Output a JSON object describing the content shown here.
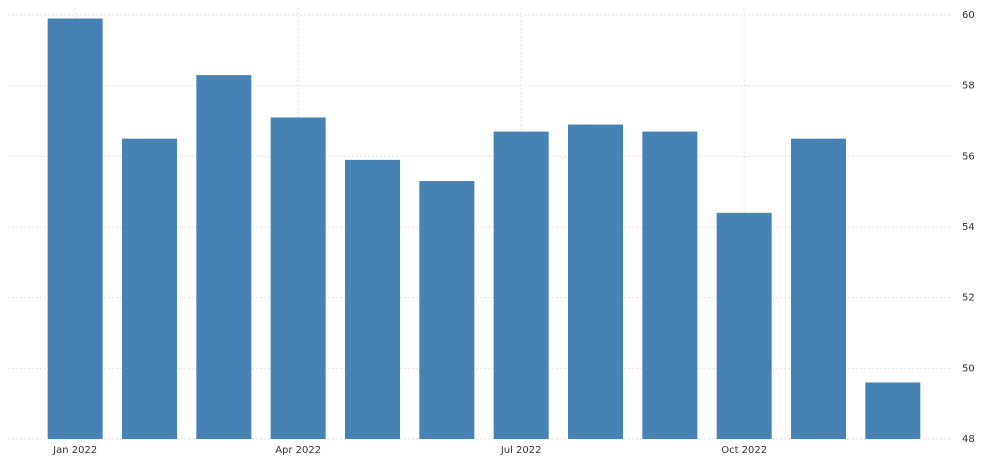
{
  "chart_data": {
    "type": "bar",
    "categories": [
      "Jan 2022",
      null,
      null,
      "Apr 2022",
      null,
      null,
      "Jul 2022",
      null,
      null,
      "Oct 2022",
      null,
      null
    ],
    "values": [
      59.9,
      56.5,
      58.3,
      57.1,
      55.9,
      55.3,
      56.7,
      56.9,
      56.7,
      54.4,
      56.5,
      49.6
    ],
    "color": "#4682b4",
    "ylim": [
      48,
      60
    ],
    "yticks": [
      48,
      50,
      52,
      54,
      56,
      58,
      60
    ],
    "grid": true
  }
}
